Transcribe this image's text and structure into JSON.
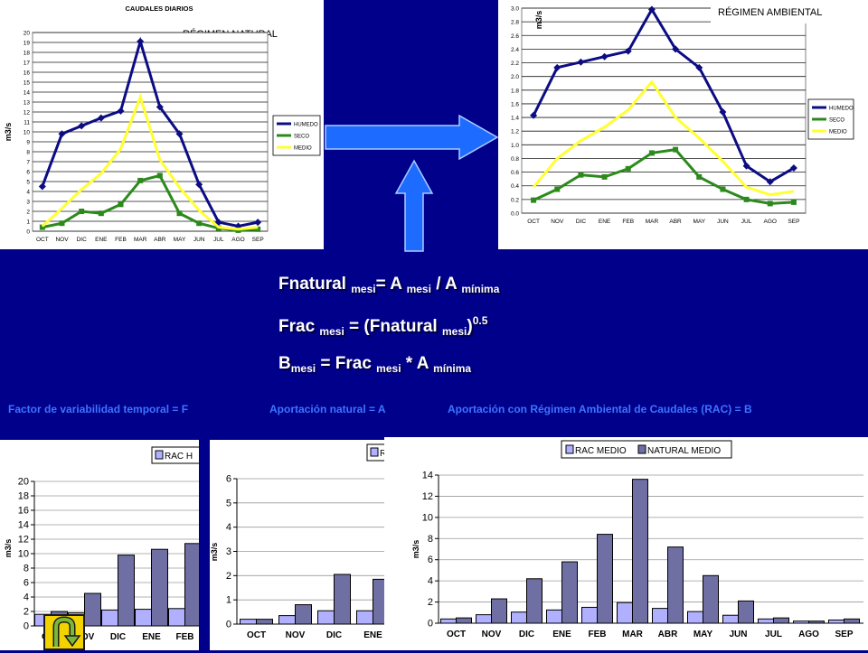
{
  "colors": {
    "background": "#00008b",
    "humedo": "#0c0c84",
    "seco": "#2c8a1c",
    "medio": "#ffff33",
    "rac_bar": "#b0b0ff",
    "natural_bar": "#6f6fa4",
    "formula_text": "#ffffff",
    "definitions_text": "#3e74ff",
    "arrow": "#1e6cff",
    "uturn_button": "#f2d200"
  },
  "formulas": {
    "f1": {
      "a": "Fnatural ",
      "a_sub": "mesi",
      "b": "= A ",
      "b_sub": "mesi",
      "c": " / A ",
      "c_sub": "mínima"
    },
    "f2": {
      "a": "Frac ",
      "a_sub": "mesi",
      "b": " = (Fnatural ",
      "b_sub": "mesi",
      "c": ")",
      "c_sup": "0.5"
    },
    "f3": {
      "a": "B",
      "a_sub": "mesi",
      "b": " = Frac ",
      "b_sub": "mesi",
      "c": " * A ",
      "c_sub": "mínima"
    }
  },
  "definitions": {
    "d1": "Factor de variabilidad temporal = F",
    "d2": "Aportación natural = A",
    "d3": "Aportación con Régimen Ambiental de Caudales (RAC) = B"
  },
  "icons": {
    "flow_arrow_right": "arrow-right-icon",
    "flow_arrow_up": "arrow-up-icon",
    "return_button": "u-turn-icon"
  },
  "chart_data": [
    {
      "type": "line",
      "title": "CAUDALES DIARIOS",
      "subtitle": "RÉGIMEN NATURAL",
      "ylabel": "m3/s",
      "categories": [
        "OCT",
        "NOV",
        "DIC",
        "ENE",
        "FEB",
        "MAR",
        "ABR",
        "MAY",
        "JUN",
        "JUL",
        "AGO",
        "SEP"
      ],
      "yticks": [
        "0",
        "1",
        "2",
        "3",
        "4",
        "5",
        "6",
        "7",
        "8",
        "9",
        "10",
        "11",
        "12",
        "13",
        "14",
        "15",
        "16",
        "17",
        "18",
        "19",
        "20"
      ],
      "ylim": [
        0,
        20
      ],
      "legend": "right",
      "series": [
        {
          "name": "HUMEDO",
          "marker": "diamond",
          "values": [
            4.5,
            9.8,
            10.6,
            11.4,
            12.1,
            19.1,
            12.5,
            9.8,
            4.7,
            0.9,
            0.5,
            0.9
          ]
        },
        {
          "name": "SECO",
          "marker": "square",
          "values": [
            0.4,
            0.8,
            2.0,
            1.8,
            2.7,
            5.1,
            5.6,
            1.8,
            0.8,
            0.3,
            0.1,
            0.2
          ]
        },
        {
          "name": "MEDIO",
          "marker": "none",
          "values": [
            0.5,
            2.3,
            4.2,
            5.8,
            8.3,
            13.5,
            7.2,
            4.4,
            2.1,
            0.4,
            0.2,
            0.4
          ]
        }
      ]
    },
    {
      "type": "line",
      "subtitle": "RÉGIMEN AMBIENTAL",
      "ylabel": "m3/s",
      "categories": [
        "OCT",
        "NOV",
        "DIC",
        "ENE",
        "FEB",
        "MAR",
        "ABR",
        "MAY",
        "JUN",
        "JUL",
        "AGO",
        "SEP"
      ],
      "yticks": [
        "0.0",
        "0.2",
        "0.4",
        "0.6",
        "0.8",
        "1.0",
        "1.2",
        "1.4",
        "1.6",
        "1.8",
        "2.0",
        "2.2",
        "2.4",
        "2.6",
        "2.8",
        "3.0"
      ],
      "ylim": [
        0,
        3.0
      ],
      "legend": "right",
      "series": [
        {
          "name": "HUMEDO",
          "marker": "diamond",
          "values": [
            1.43,
            2.13,
            2.21,
            2.29,
            2.37,
            2.98,
            2.4,
            2.13,
            1.48,
            0.69,
            0.46,
            0.66
          ]
        },
        {
          "name": "SECO",
          "marker": "square",
          "values": [
            0.19,
            0.35,
            0.56,
            0.53,
            0.65,
            0.88,
            0.93,
            0.53,
            0.35,
            0.2,
            0.14,
            0.16
          ]
        },
        {
          "name": "MEDIO",
          "marker": "none",
          "values": [
            0.38,
            0.8,
            1.06,
            1.26,
            1.51,
            1.92,
            1.4,
            1.1,
            0.76,
            0.38,
            0.27,
            0.32
          ]
        }
      ]
    },
    {
      "type": "bar",
      "ylabel": "m3/s",
      "categories": [
        "OCT",
        "NOV",
        "DIC",
        "ENE",
        "FEB"
      ],
      "yticks": [
        "0",
        "2",
        "4",
        "6",
        "8",
        "10",
        "12",
        "14",
        "16",
        "18",
        "20"
      ],
      "ylim": [
        0,
        20
      ],
      "legend": "top",
      "series": [
        {
          "name": "RAC H",
          "values": [
            1.6,
            1.8,
            2.2,
            2.3,
            2.4
          ]
        },
        {
          "name": "",
          "values": [
            2.0,
            4.5,
            9.8,
            10.6,
            11.4
          ]
        }
      ]
    },
    {
      "type": "bar",
      "ylabel": "m3/s",
      "categories": [
        "OCT",
        "NOV",
        "DIC",
        "ENE"
      ],
      "yticks": [
        "0",
        "1",
        "2",
        "3",
        "4",
        "5",
        "6"
      ],
      "ylim": [
        0,
        6
      ],
      "legend": "top",
      "series": [
        {
          "name": "R",
          "values": [
            0.2,
            0.35,
            0.55,
            0.55
          ]
        },
        {
          "name": "",
          "values": [
            0.2,
            0.8,
            2.05,
            1.85
          ]
        }
      ]
    },
    {
      "type": "bar",
      "ylabel": "m3/s",
      "categories": [
        "OCT",
        "NOV",
        "DIC",
        "ENE",
        "FEB",
        "MAR",
        "ABR",
        "MAY",
        "JUN",
        "JUL",
        "AGO",
        "SEP"
      ],
      "yticks": [
        "0",
        "2",
        "4",
        "6",
        "8",
        "10",
        "12",
        "14"
      ],
      "ylim": [
        0,
        14
      ],
      "legend": "top",
      "series": [
        {
          "name": "RAC MEDIO",
          "values": [
            0.4,
            0.8,
            1.05,
            1.25,
            1.5,
            1.95,
            1.4,
            1.1,
            0.75,
            0.4,
            0.2,
            0.3
          ]
        },
        {
          "name": "NATURAL MEDIO",
          "values": [
            0.5,
            2.3,
            4.2,
            5.8,
            8.4,
            13.6,
            7.2,
            4.5,
            2.1,
            0.5,
            0.2,
            0.4
          ]
        }
      ]
    }
  ]
}
